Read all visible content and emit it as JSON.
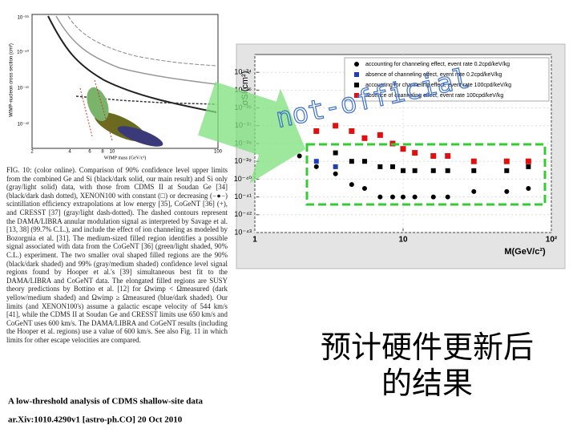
{
  "left_figure": {
    "y_label": "WIMP-nucleon cross section (cm²)",
    "x_label": "WIMP mass (GeV/c²)",
    "y_tick_labels": [
      "10⁻³⁹",
      "10⁻⁴⁰",
      "10⁻⁴¹",
      "10⁻⁴²"
    ],
    "x_tick_labels": [
      "2",
      "4",
      "6",
      "8",
      "10",
      "100"
    ],
    "caption": "FIG. 10: (color online). Comparison of 90% confidence level upper limits from the combined Ge and Si (black/dark solid, our main result) and Si only (gray/light solid) data, with those from CDMS II at Soudan Ge [34] (black/dark dash dotted), XENON100 with constant (□) or decreasing (−●−) scintillation efficiency extrapolations at low energy [35], CoGeNT [36] (+), and CRESST [37] (gray/light dash-dotted). The dashed contours represent the DAMA/LIBRA annular modulation signal as interpreted by Savage et al. [13, 38] (99.7% C.L.), and include the effect of ion channeling as modeled by Bozorgnia et al. [31]. The medium-sized filled region identifies a possible signal associated with data from the CoGeNT [36] (green/light shaded, 90% C.L.) experiment. The two smaller oval shaped filled regions are the 90% (black/dark shaded) and 99% (gray/medium shaded) confidence level signal regions found by Hooper et al.'s [39] simultaneous best fit to the DAMA/LIBRA and CoGeNT data. The elongated filled regions are SUSY theory predictions by Bottino et al. [12] for Ωwimp < Ωmeasured (dark yellow/medium shaded) and Ωwimp ≥ Ωmeasured (blue/dark shaded). Our limits (and XENON100's) assume a galactic escape velocity of 544 km/s [41], while the CDMS II at Soudan Ge and CRESST limits use 650 km/s and CoGeNT uses 600 km/s. The DAMA/LIBRA and CoGeNT results (including the Hooper et al. regions) use a value of 600 km/s. See also Fig. 11 in which limits for other escape velocities are compared."
  },
  "reference": {
    "title": "A low-threshold analysis of CDMS shallow-site data",
    "arxiv": "ar.Xiv:1010.4290v1 [astro-ph.CO] 20 Oct 2010"
  },
  "watermark": "not-official",
  "annotation": [
    "预计硬件更新后",
    "的结果"
  ],
  "chart_data": {
    "type": "scatter",
    "y_label": "σSI(cm²)",
    "x_label": "M(GeV/c²)",
    "log_x": true,
    "log_y": true,
    "grid": true,
    "xlim": [
      1,
      100
    ],
    "xticks": [
      1,
      10,
      {
        "value": 100,
        "label": "10²"
      }
    ],
    "ylim": [
      1e-43,
      1e-33
    ],
    "yticks": [
      {
        "value": 1e-34,
        "label": "10⁻³⁴"
      },
      {
        "value": 1e-35,
        "label": "10⁻³⁵"
      },
      {
        "value": 1e-36,
        "label": "10⁻³⁶"
      },
      {
        "value": 1e-37,
        "label": "10⁻³⁷"
      },
      {
        "value": 1e-38,
        "label": "10⁻³⁸"
      },
      {
        "value": 1e-39,
        "label": "10⁻³⁹"
      },
      {
        "value": 1e-40,
        "label": "10⁻⁴⁰"
      },
      {
        "value": 1e-41,
        "label": "10⁻⁴¹"
      },
      {
        "value": 1e-42,
        "label": "10⁻⁴²"
      },
      {
        "value": 1e-43,
        "label": "10⁻⁴³"
      }
    ],
    "series": [
      {
        "name": "accounting for channeling effect, event rate 0.2cpd/keV/kg",
        "color": "#000000",
        "marker": "circle",
        "x": [
          2,
          2.6,
          3.5,
          4.5,
          5.5,
          7,
          8.5,
          10,
          12,
          16,
          20,
          30,
          50,
          70
        ],
        "values": [
          2e-39,
          5e-40,
          2e-40,
          5e-41,
          3e-41,
          1e-41,
          1e-41,
          1e-41,
          1e-41,
          1e-41,
          1e-41,
          2e-41,
          2e-41,
          3e-41
        ]
      },
      {
        "name": "absence of channeling effect, event rate 0.2cpd/keV/kg",
        "color": "#1f3fb0",
        "marker": "square",
        "x": [
          2.6,
          3.5
        ],
        "values": [
          1e-39,
          5e-40
        ]
      },
      {
        "name": "accounting for channeling effect, event rate 100cpd/keV/kg",
        "color": "#000000",
        "marker": "square",
        "x": [
          3.5,
          4.5,
          5.5,
          7,
          8.5,
          10,
          12,
          16,
          20,
          30,
          50,
          70
        ],
        "values": [
          3e-39,
          1e-39,
          1e-39,
          5e-40,
          5e-40,
          3e-40,
          3e-40,
          3e-40,
          3e-40,
          3e-40,
          3e-40,
          5e-40
        ]
      },
      {
        "name": "absence of channeling effect, event rate 100cpd/keV/kg",
        "color": "#e01010",
        "marker": "square",
        "x": [
          2.6,
          3.5,
          4.5,
          5.5,
          7,
          8.5,
          10,
          12,
          16,
          20,
          30,
          50,
          70
        ],
        "values": [
          5e-38,
          1e-37,
          5e-38,
          2e-38,
          3e-38,
          1e-38,
          5e-39,
          3e-39,
          2e-39,
          2e-39,
          1e-39,
          1e-39,
          1e-39
        ]
      }
    ]
  }
}
